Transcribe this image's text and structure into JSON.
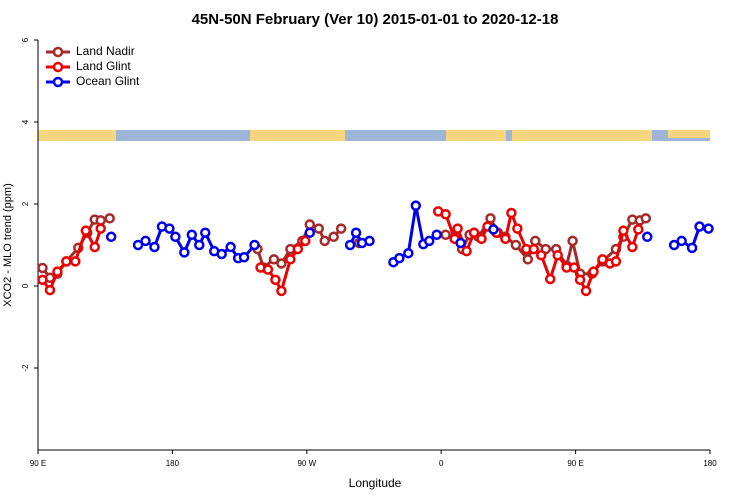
{
  "chart_data": {
    "type": "line",
    "title": "45N-50N February (Ver 10)   2015-01-01 to 2020-12-18",
    "xlabel": "Longitude",
    "ylabel": "XCO2 - MLO trend (ppm)",
    "xlim": [
      90,
      540
    ],
    "ylim": [
      -4,
      6
    ],
    "xticks": [
      {
        "value": 90,
        "label": "90 E"
      },
      180,
      {
        "value": 270,
        "label": "90 W"
      },
      {
        "value": 360,
        "label": "0"
      },
      {
        "value": 450,
        "label": "90 E"
      },
      {
        "value": 540,
        "label": "180"
      }
    ],
    "yticks": [
      -2,
      0,
      2,
      4,
      6
    ],
    "legend": "top-left",
    "series": [
      {
        "name": "Land Nadir",
        "color": "#a52a2a",
        "x": [
          93,
          98,
          103,
          109,
          117,
          123,
          128,
          132,
          138,
          null,
          237,
          241,
          248,
          253,
          259,
          267,
          272,
          278,
          282,
          288,
          293,
          null,
          305,
          null,
          363,
          370,
          374,
          379,
          385,
          393,
          398,
          403,
          410,
          418,
          423,
          430,
          437,
          444,
          448,
          453,
          461,
          468,
          477,
          482,
          488,
          493,
          497
        ],
        "values": [
          0.44,
          0.2,
          0.3,
          0.6,
          0.93,
          1.3,
          1.62,
          1.6,
          1.65,
          null,
          0.9,
          0.45,
          0.65,
          0.55,
          0.9,
          1.1,
          1.5,
          1.4,
          1.1,
          1.2,
          1.4,
          null,
          1.05,
          null,
          1.25,
          1.2,
          0.9,
          1.25,
          1.2,
          1.65,
          1.3,
          1.2,
          1.0,
          0.65,
          1.1,
          0.9,
          0.9,
          0.5,
          1.1,
          0.3,
          0.3,
          0.6,
          0.9,
          1.2,
          1.62,
          1.6,
          1.65
        ]
      },
      {
        "name": "Land Glint",
        "color": "#ee0000",
        "x": [
          93,
          98,
          103,
          109,
          115,
          122,
          128,
          132,
          null,
          239,
          244,
          249,
          253,
          259,
          264,
          269,
          null,
          358,
          363,
          369,
          371,
          377,
          382,
          387,
          391,
          397,
          403,
          407,
          411,
          417,
          422,
          427,
          433,
          438,
          444,
          449,
          453,
          457,
          462,
          468,
          473,
          477,
          482,
          488,
          492
        ],
        "values": [
          0.15,
          -0.1,
          0.35,
          0.6,
          0.6,
          1.35,
          0.95,
          1.4,
          null,
          0.45,
          0.4,
          0.15,
          -0.12,
          0.65,
          0.9,
          1.1,
          null,
          1.82,
          1.75,
          1.15,
          1.4,
          0.85,
          1.3,
          1.15,
          1.45,
          1.3,
          1.15,
          1.78,
          1.4,
          0.9,
          0.9,
          0.75,
          0.17,
          0.75,
          0.45,
          0.45,
          0.15,
          -0.12,
          0.35,
          0.65,
          0.55,
          0.6,
          1.35,
          0.95,
          1.38
        ]
      },
      {
        "name": "Ocean Glint",
        "color": "#0000ee",
        "x": [
          139,
          null,
          157,
          162,
          168,
          173,
          178,
          182,
          188,
          193,
          198,
          202,
          208,
          213,
          219,
          224,
          228,
          235,
          null,
          272,
          null,
          299,
          303,
          307,
          312,
          null,
          328,
          332,
          338,
          343,
          348,
          352,
          357,
          null,
          373,
          null,
          395,
          null,
          498,
          null,
          516,
          521,
          528,
          533,
          539
        ],
        "values": [
          1.2,
          null,
          1.0,
          1.1,
          0.95,
          1.45,
          1.4,
          1.2,
          0.82,
          1.25,
          1.0,
          1.3,
          0.85,
          0.78,
          0.95,
          0.68,
          0.7,
          1.0,
          null,
          1.3,
          null,
          1.0,
          1.3,
          1.05,
          1.1,
          null,
          0.58,
          0.68,
          0.8,
          1.96,
          1.02,
          1.1,
          1.25,
          null,
          1.05,
          null,
          1.38,
          null,
          1.2,
          null,
          1.0,
          1.1,
          0.93,
          1.45,
          1.4
        ]
      }
    ]
  }
}
